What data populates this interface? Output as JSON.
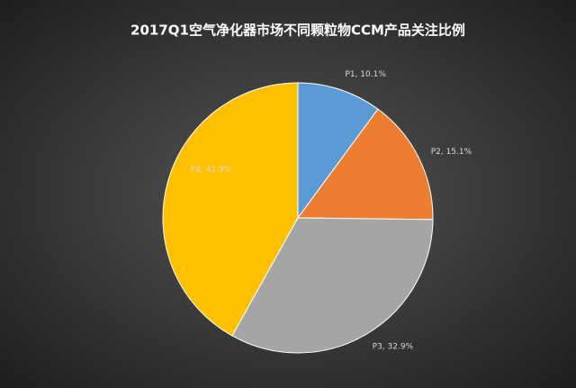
{
  "chart_data": {
    "type": "pie",
    "title": "2017Q1空气净化器市场不同颗粒物CCM产品关注比例",
    "categories": [
      "P1",
      "P2",
      "P3",
      "P4"
    ],
    "values": [
      10.1,
      15.1,
      32.9,
      41.9
    ],
    "value_labels": [
      "P1, 10.1%",
      "P2, 15.1%",
      "P3, 32.9%",
      "P4, 41.9%"
    ],
    "colors": [
      "#5b9bd5",
      "#ed7d31",
      "#a5a5a5",
      "#ffc000"
    ]
  }
}
